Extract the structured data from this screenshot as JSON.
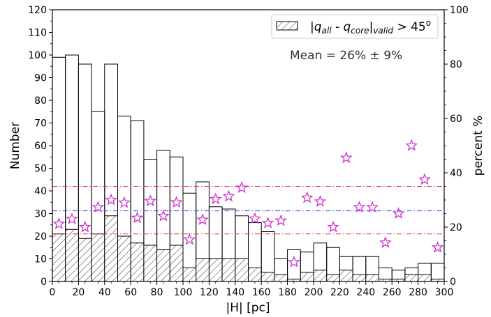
{
  "chart_data": {
    "type": "bar",
    "xlabel": "|H| [pc]",
    "ylabel": "Number",
    "y2label": "percent %",
    "xlim": [
      0,
      300
    ],
    "ylim": [
      0,
      120
    ],
    "y2lim": [
      0,
      100
    ],
    "x_ticks": [
      0,
      20,
      40,
      60,
      80,
      100,
      120,
      140,
      160,
      180,
      200,
      220,
      240,
      260,
      280,
      300
    ],
    "y_ticks": [
      0,
      10,
      20,
      30,
      40,
      50,
      60,
      70,
      80,
      90,
      100,
      110,
      120
    ],
    "y2_ticks": [
      0,
      20,
      40,
      60,
      80,
      100
    ],
    "bin_edges": [
      0,
      10,
      20,
      30,
      40,
      50,
      60,
      70,
      80,
      90,
      100,
      110,
      120,
      130,
      140,
      150,
      160,
      170,
      180,
      190,
      200,
      210,
      220,
      230,
      240,
      250,
      260,
      270,
      280,
      290,
      300
    ],
    "series": [
      {
        "values": [
          99,
          100,
          96,
          75,
          96,
          73,
          71,
          54,
          58,
          55,
          39,
          44,
          33,
          32,
          29,
          26,
          22,
          10,
          14,
          13,
          17,
          15,
          11,
          11,
          11,
          6,
          5,
          6,
          8,
          8
        ],
        "color": "#000000"
      },
      {
        "name": "|q_all - q_core|_valid > 45°",
        "values": [
          21,
          23,
          19,
          21,
          29,
          20,
          17,
          16,
          14,
          16,
          6,
          10,
          10,
          10,
          10,
          6,
          4,
          3,
          1,
          4,
          5,
          3,
          5,
          3,
          3,
          1,
          1,
          3,
          3,
          1
        ],
        "hatch": true,
        "color": "#555555"
      },
      {
        "type": "scatter",
        "axis": "y2",
        "marker": "star",
        "color": "#cc33cc",
        "x": [
          5,
          15,
          25,
          35,
          45,
          55,
          65,
          75,
          85,
          95,
          105,
          115,
          125,
          135,
          145,
          155,
          165,
          175,
          185,
          195,
          205,
          215,
          225,
          235,
          245,
          255,
          265,
          275,
          285,
          295
        ],
        "values": [
          21.2,
          23,
          20,
          27.3,
          30,
          29,
          23.4,
          29.6,
          24.1,
          29.1,
          15.4,
          22.7,
          30.3,
          31.3,
          34.5,
          23.1,
          21.5,
          22.4,
          7.1,
          30.8,
          29.4,
          20,
          45.5,
          27.3,
          27.3,
          14.3,
          25,
          50,
          37.5,
          12.5
        ]
      }
    ],
    "hlines_y2": [
      {
        "value": 26,
        "color": "#3344dd",
        "style": "dashdot"
      },
      {
        "value": 35,
        "color": "#dd3344",
        "style": "dashdot"
      },
      {
        "value": 17.5,
        "color": "#dd3344",
        "style": "dashdot"
      }
    ],
    "legend": {
      "position": "top-right",
      "label_main": "|q",
      "label_sub1": "all",
      "label_mid": " - q",
      "label_sub2": "core",
      "label_bar": "|",
      "label_sub3": "valid",
      "label_tail": " > 45",
      "label_sup": "o"
    },
    "annotation": "Mean = 26% ± 9%",
    "grid": false
  }
}
